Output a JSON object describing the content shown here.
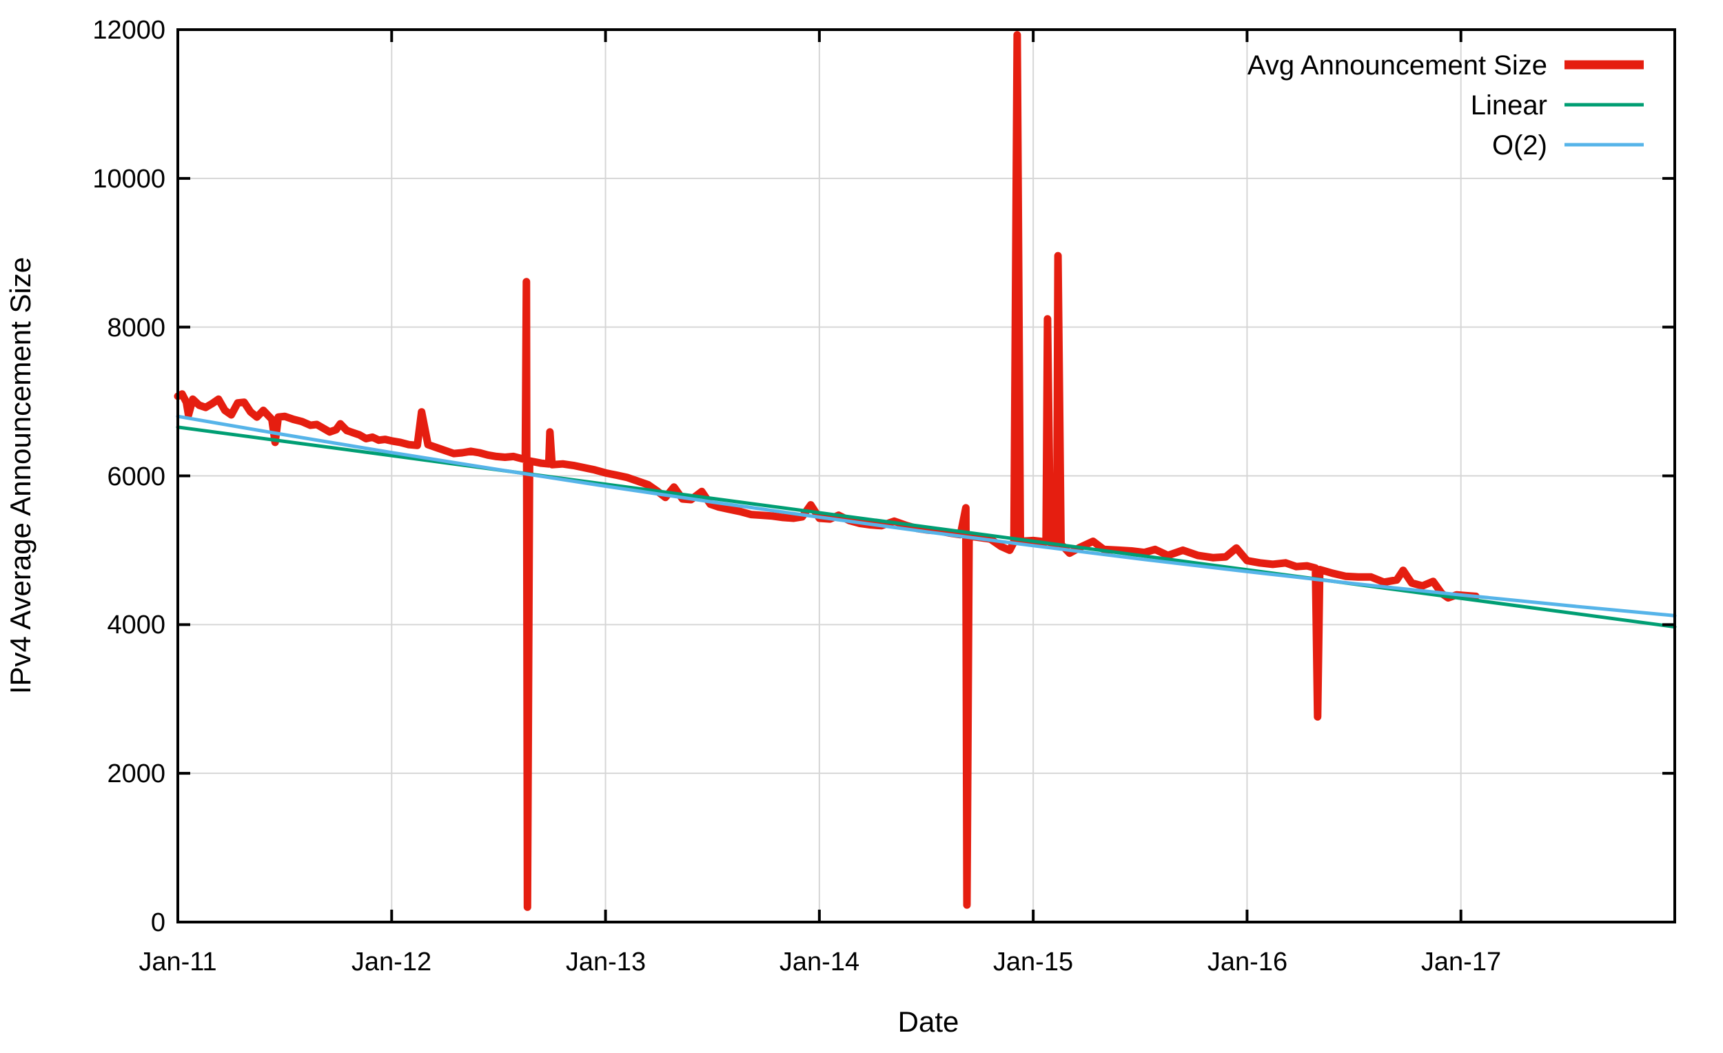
{
  "figure": {
    "xlabel": "Date",
    "ylabel": "IPv4 Average Announcement Size"
  },
  "legend": {
    "position": "top-right",
    "entries": [
      {
        "label": "Avg Announcement Size",
        "color": "#e51e10",
        "sample_width": 13
      },
      {
        "label": "Linear",
        "color": "#009e73",
        "sample_width": 5
      },
      {
        "label": "O(2)",
        "color": "#56b4e9",
        "sample_width": 5
      }
    ]
  },
  "chart_data": {
    "type": "line",
    "title": "",
    "xlabel": "Date",
    "ylabel": "IPv4 Average Announcement Size",
    "xlim_years": [
      2011,
      2018
    ],
    "ylim": [
      0,
      12000
    ],
    "grid": true,
    "grid_color": "#d6d6d6",
    "x_ticks": {
      "labels": [
        "Jan-11",
        "Jan-12",
        "Jan-13",
        "Jan-14",
        "Jan-15",
        "Jan-16",
        "Jan-17"
      ],
      "years": [
        2011,
        2012,
        2013,
        2014,
        2015,
        2016,
        2017
      ]
    },
    "y_ticks": {
      "labels": [
        "0",
        "2000",
        "4000",
        "6000",
        "8000",
        "10000",
        "12000"
      ],
      "values": [
        0,
        2000,
        4000,
        6000,
        8000,
        10000,
        12000
      ]
    },
    "series": [
      {
        "name": "Avg Announcement Size",
        "color": "#e51e10",
        "line_width": 11,
        "points": [
          [
            2011.0,
            7070
          ],
          [
            2011.02,
            7100
          ],
          [
            2011.04,
            6990
          ],
          [
            2011.05,
            6820
          ],
          [
            2011.07,
            7030
          ],
          [
            2011.1,
            6950
          ],
          [
            2011.13,
            6920
          ],
          [
            2011.16,
            6970
          ],
          [
            2011.19,
            7030
          ],
          [
            2011.22,
            6880
          ],
          [
            2011.25,
            6820
          ],
          [
            2011.28,
            6980
          ],
          [
            2011.31,
            6990
          ],
          [
            2011.34,
            6860
          ],
          [
            2011.37,
            6790
          ],
          [
            2011.4,
            6880
          ],
          [
            2011.44,
            6760
          ],
          [
            2011.455,
            6450
          ],
          [
            2011.47,
            6790
          ],
          [
            2011.5,
            6800
          ],
          [
            2011.54,
            6760
          ],
          [
            2011.58,
            6730
          ],
          [
            2011.62,
            6680
          ],
          [
            2011.65,
            6690
          ],
          [
            2011.68,
            6640
          ],
          [
            2011.71,
            6590
          ],
          [
            2011.74,
            6620
          ],
          [
            2011.76,
            6700
          ],
          [
            2011.79,
            6610
          ],
          [
            2011.82,
            6580
          ],
          [
            2011.85,
            6550
          ],
          [
            2011.88,
            6500
          ],
          [
            2011.91,
            6520
          ],
          [
            2011.94,
            6480
          ],
          [
            2011.97,
            6490
          ],
          [
            2012.0,
            6470
          ],
          [
            2012.04,
            6450
          ],
          [
            2012.08,
            6420
          ],
          [
            2012.12,
            6410
          ],
          [
            2012.14,
            6860
          ],
          [
            2012.17,
            6420
          ],
          [
            2012.21,
            6380
          ],
          [
            2012.25,
            6340
          ],
          [
            2012.29,
            6300
          ],
          [
            2012.33,
            6310
          ],
          [
            2012.37,
            6330
          ],
          [
            2012.41,
            6310
          ],
          [
            2012.45,
            6280
          ],
          [
            2012.49,
            6260
          ],
          [
            2012.53,
            6250
          ],
          [
            2012.57,
            6260
          ],
          [
            2012.61,
            6230
          ],
          [
            2012.625,
            6220
          ],
          [
            2012.63,
            8610
          ],
          [
            2012.635,
            200
          ],
          [
            2012.645,
            6200
          ],
          [
            2012.7,
            6170
          ],
          [
            2012.735,
            6160
          ],
          [
            2012.74,
            6590
          ],
          [
            2012.75,
            6150
          ],
          [
            2012.8,
            6160
          ],
          [
            2012.85,
            6140
          ],
          [
            2012.9,
            6110
          ],
          [
            2012.95,
            6080
          ],
          [
            2013.0,
            6040
          ],
          [
            2013.05,
            6010
          ],
          [
            2013.1,
            5980
          ],
          [
            2013.15,
            5930
          ],
          [
            2013.2,
            5880
          ],
          [
            2013.24,
            5800
          ],
          [
            2013.28,
            5710
          ],
          [
            2013.32,
            5850
          ],
          [
            2013.36,
            5690
          ],
          [
            2013.4,
            5680
          ],
          [
            2013.45,
            5790
          ],
          [
            2013.49,
            5620
          ],
          [
            2013.53,
            5580
          ],
          [
            2013.58,
            5550
          ],
          [
            2013.63,
            5520
          ],
          [
            2013.68,
            5480
          ],
          [
            2013.73,
            5470
          ],
          [
            2013.78,
            5460
          ],
          [
            2013.83,
            5440
          ],
          [
            2013.88,
            5430
          ],
          [
            2013.92,
            5450
          ],
          [
            2013.96,
            5610
          ],
          [
            2014.0,
            5430
          ],
          [
            2014.05,
            5420
          ],
          [
            2014.09,
            5470
          ],
          [
            2014.14,
            5400
          ],
          [
            2014.19,
            5360
          ],
          [
            2014.24,
            5340
          ],
          [
            2014.29,
            5330
          ],
          [
            2014.35,
            5390
          ],
          [
            2014.41,
            5330
          ],
          [
            2014.46,
            5290
          ],
          [
            2014.51,
            5270
          ],
          [
            2014.56,
            5260
          ],
          [
            2014.61,
            5230
          ],
          [
            2014.66,
            5210
          ],
          [
            2014.685,
            5570
          ],
          [
            2014.69,
            230
          ],
          [
            2014.7,
            5190
          ],
          [
            2014.75,
            5170
          ],
          [
            2014.8,
            5150
          ],
          [
            2014.85,
            5050
          ],
          [
            2014.89,
            5000
          ],
          [
            2014.91,
            5110
          ],
          [
            2014.925,
            11930
          ],
          [
            2014.94,
            5120
          ],
          [
            2015.0,
            5130
          ],
          [
            2015.06,
            5110
          ],
          [
            2015.067,
            8110
          ],
          [
            2015.08,
            5100
          ],
          [
            2015.11,
            5090
          ],
          [
            2015.116,
            8960
          ],
          [
            2015.13,
            5080
          ],
          [
            2015.17,
            4960
          ],
          [
            2015.22,
            5040
          ],
          [
            2015.28,
            5120
          ],
          [
            2015.33,
            5010
          ],
          [
            2015.4,
            5000
          ],
          [
            2015.46,
            4990
          ],
          [
            2015.52,
            4970
          ],
          [
            2015.57,
            5010
          ],
          [
            2015.63,
            4930
          ],
          [
            2015.7,
            5000
          ],
          [
            2015.77,
            4930
          ],
          [
            2015.84,
            4900
          ],
          [
            2015.9,
            4910
          ],
          [
            2015.95,
            5030
          ],
          [
            2016.0,
            4860
          ],
          [
            2016.06,
            4830
          ],
          [
            2016.12,
            4810
          ],
          [
            2016.18,
            4830
          ],
          [
            2016.23,
            4780
          ],
          [
            2016.28,
            4790
          ],
          [
            2016.32,
            4760
          ],
          [
            2016.33,
            2760
          ],
          [
            2016.34,
            4740
          ],
          [
            2016.4,
            4690
          ],
          [
            2016.46,
            4650
          ],
          [
            2016.52,
            4640
          ],
          [
            2016.58,
            4640
          ],
          [
            2016.64,
            4570
          ],
          [
            2016.7,
            4600
          ],
          [
            2016.73,
            4730
          ],
          [
            2016.77,
            4560
          ],
          [
            2016.82,
            4520
          ],
          [
            2016.87,
            4580
          ],
          [
            2016.91,
            4420
          ],
          [
            2016.94,
            4360
          ],
          [
            2016.98,
            4400
          ],
          [
            2017.02,
            4390
          ],
          [
            2017.07,
            4380
          ]
        ]
      },
      {
        "name": "Linear",
        "color": "#009e73",
        "line_width": 5,
        "points": [
          [
            2011.0,
            6655
          ],
          [
            2018.0,
            3970
          ]
        ]
      },
      {
        "name": "O(2)",
        "color": "#56b4e9",
        "line_width": 5,
        "points": [
          [
            2011.0,
            6800
          ],
          [
            2011.5,
            6552
          ],
          [
            2012.0,
            6313
          ],
          [
            2012.5,
            6083
          ],
          [
            2013.0,
            5861
          ],
          [
            2013.5,
            5648
          ],
          [
            2014.0,
            5444
          ],
          [
            2014.5,
            5248
          ],
          [
            2015.0,
            5061
          ],
          [
            2015.5,
            4882
          ],
          [
            2016.0,
            4713
          ],
          [
            2016.5,
            4551
          ],
          [
            2017.0,
            4399
          ],
          [
            2017.5,
            4255
          ],
          [
            2018.0,
            4120
          ]
        ]
      }
    ]
  }
}
